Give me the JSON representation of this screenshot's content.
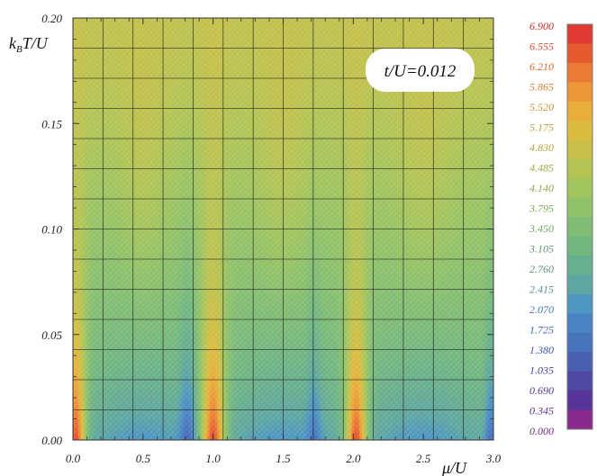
{
  "chart_data": {
    "type": "heatmap",
    "title": "",
    "xlabel": "μ/U",
    "ylabel_main": "k",
    "ylabel_sub": "B",
    "ylabel_rest": "T/U",
    "annotation": "t/U=0.012",
    "xlim": [
      0.0,
      3.0
    ],
    "ylim": [
      0.0,
      0.2
    ],
    "x_ticks": [
      0.0,
      0.5,
      1.0,
      1.5,
      2.0,
      2.5,
      3.0
    ],
    "x_tick_labels": [
      "0.0",
      "0.5",
      "1.0",
      "1.5",
      "2.0",
      "2.5",
      "3.0"
    ],
    "y_ticks": [
      0.0,
      0.05,
      0.1,
      0.15,
      0.2
    ],
    "y_tick_labels": [
      "0.00",
      "0.05",
      "0.10",
      "0.15",
      "0.20"
    ],
    "grid": true,
    "legend_position": "right",
    "colorbar": {
      "labels": [
        "6.900",
        "6.555",
        "6.210",
        "5.865",
        "5.520",
        "5.175",
        "4.830",
        "4.485",
        "4.140",
        "3.795",
        "3.450",
        "3.105",
        "2.760",
        "2.415",
        "2.070",
        "1.725",
        "1.380",
        "1.035",
        "0.690",
        "0.345",
        "0.000"
      ],
      "colors": [
        "#e03a32",
        "#e65a30",
        "#ea7a34",
        "#ec9838",
        "#e8ae3c",
        "#dcbc40",
        "#c8c04a",
        "#b4c454",
        "#a2c45e",
        "#90c26a",
        "#80bc76",
        "#72b682",
        "#68ae90",
        "#5ea6a2",
        "#4e96c2",
        "#4a84c4",
        "#4874bc",
        "#4a60ae",
        "#4e48a2",
        "#56349a",
        "#8a2a8c"
      ],
      "label_colors": [
        "#cc2a2a",
        "#d8502a",
        "#d86a2c",
        "#d4802e",
        "#cc9430",
        "#c29e32",
        "#b0a434",
        "#a2a840",
        "#90a84a",
        "#80a454",
        "#6ea05e",
        "#62986c",
        "#5a8e7c",
        "#4e8a96",
        "#4078b0",
        "#3c68b2",
        "#3e58aa",
        "#44489c",
        "#503894",
        "#5c2e8c",
        "#7a2a8a"
      ]
    }
  }
}
